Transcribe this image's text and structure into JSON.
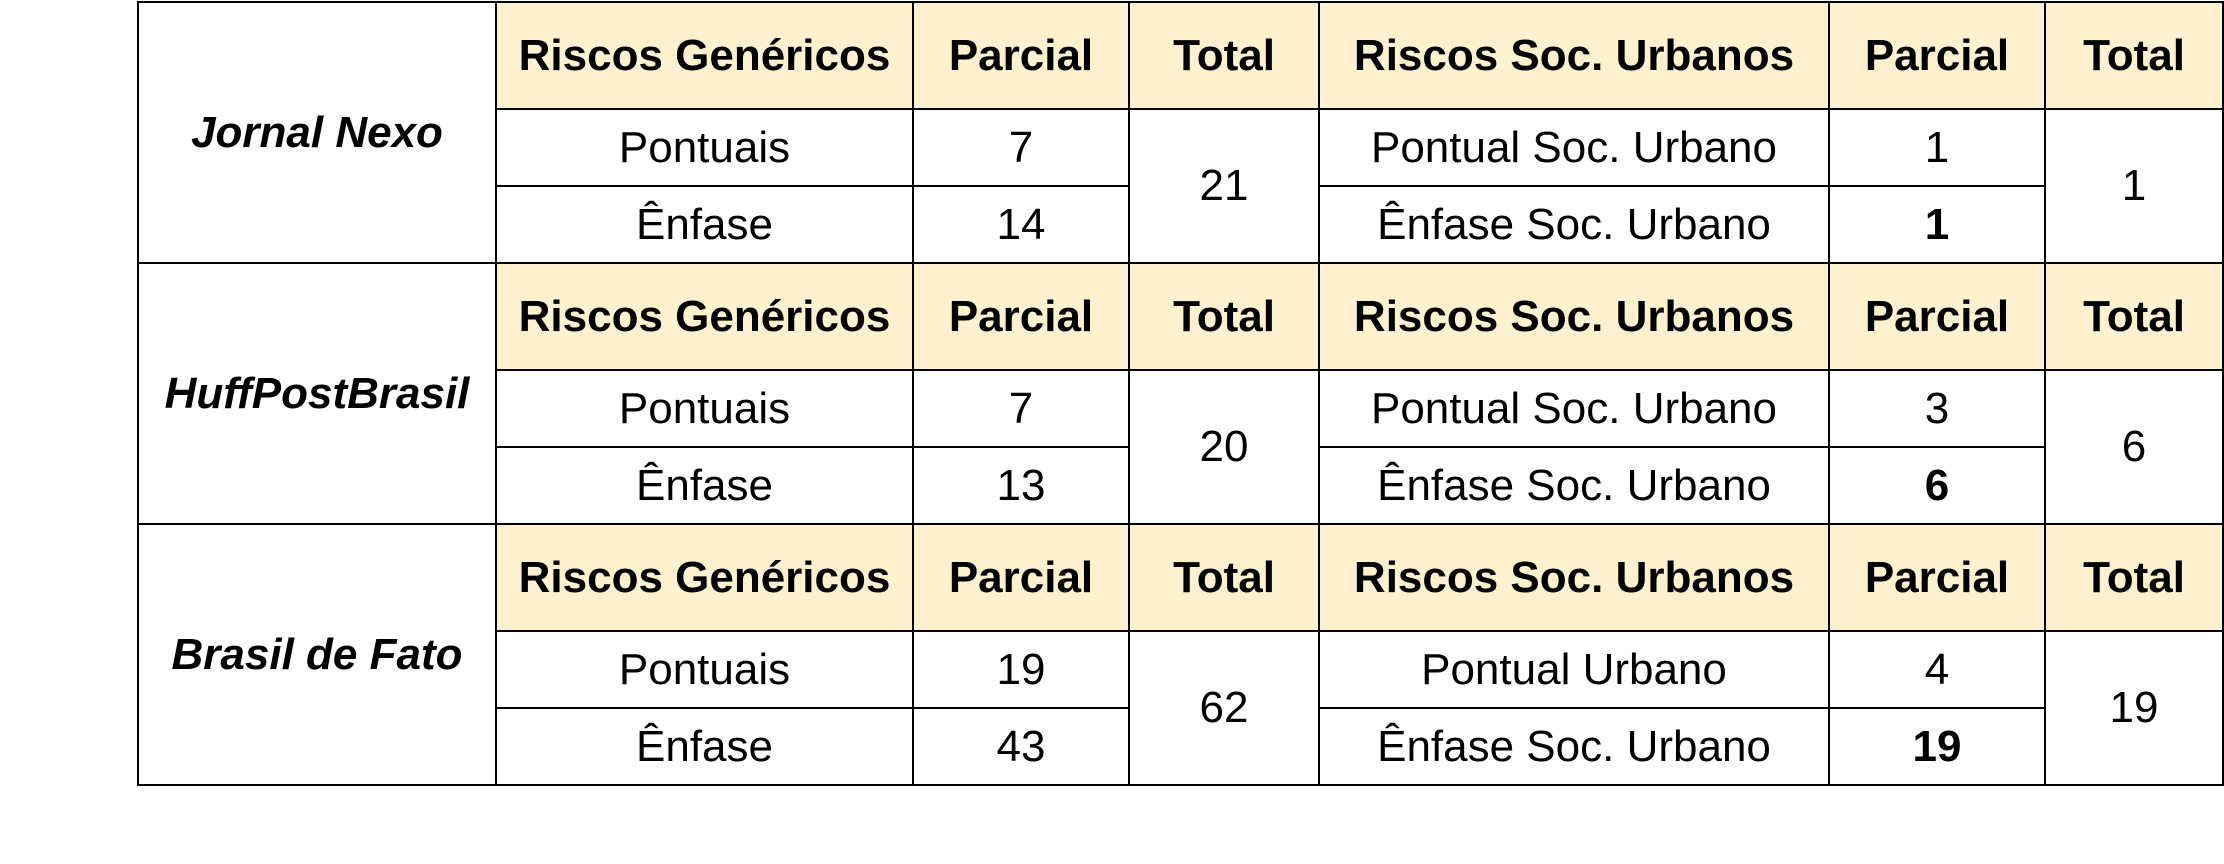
{
  "headers": {
    "riscos_genericos": "Riscos Genéricos",
    "parcial": "Parcial",
    "total": "Total",
    "riscos_soc_urbanos": "Riscos Soc. Urbanos"
  },
  "outlets": [
    {
      "name": "Jornal Nexo",
      "pontuais_label": "Pontuais",
      "pontuais_parcial": "7",
      "enfase_label": "Ênfase",
      "enfase_parcial": "14",
      "generic_total": "21",
      "pontual_urbano_label": "Pontual Soc. Urbano",
      "pontual_urbano_parcial": "1",
      "enfase_urbano_label": "Ênfase Soc. Urbano",
      "enfase_urbano_parcial": "1",
      "urbano_total": "1"
    },
    {
      "name": "HuffPostBrasil",
      "pontuais_label": "Pontuais",
      "pontuais_parcial": "7",
      "enfase_label": "Ênfase",
      "enfase_parcial": "13",
      "generic_total": "20",
      "pontual_urbano_label": "Pontual Soc. Urbano",
      "pontual_urbano_parcial": "3",
      "enfase_urbano_label": "Ênfase Soc. Urbano",
      "enfase_urbano_parcial": "6",
      "urbano_total": "6"
    },
    {
      "name": "Brasil de Fato",
      "pontuais_label": "Pontuais",
      "pontuais_parcial": "19",
      "enfase_label": "Ênfase",
      "enfase_parcial": "43",
      "generic_total": "62",
      "pontual_urbano_label": "Pontual Urbano",
      "pontual_urbano_parcial": "4",
      "enfase_urbano_label": "Ênfase Soc. Urbano",
      "enfase_urbano_parcial": "19",
      "urbano_total": "19"
    }
  ],
  "colors": {
    "header_background": "#fdf1d0",
    "border": "#000000"
  }
}
